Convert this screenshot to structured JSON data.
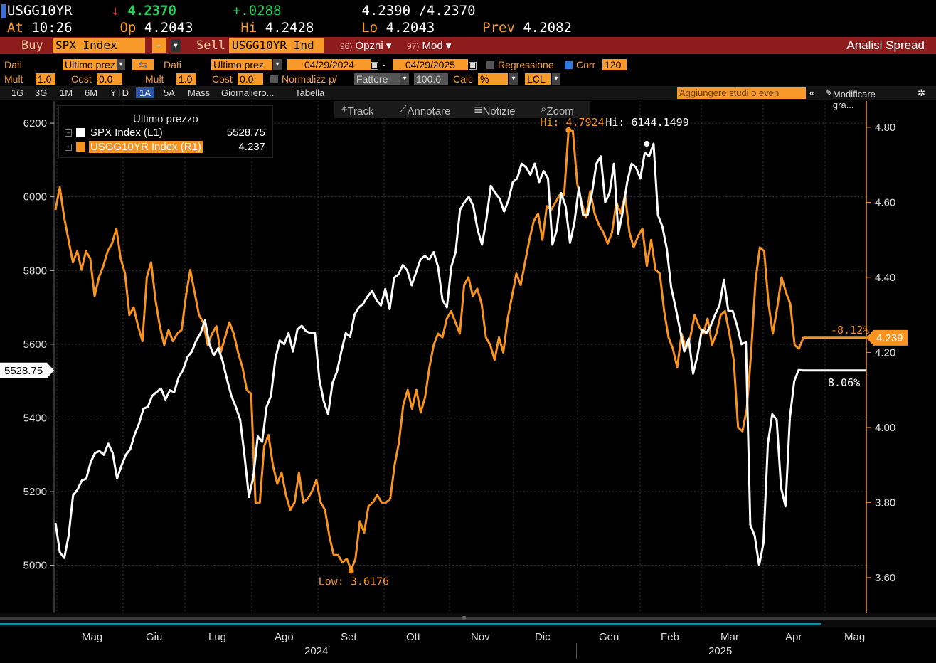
{
  "header": {
    "ticker": "USGG10YR",
    "last_arrow": "↓",
    "last": "4.2370",
    "change": "+.0288",
    "bid_ask": "4.2390 /4.2370",
    "at_label": "At",
    "time": "10:26",
    "open_label": "Op",
    "open": "4.2043",
    "hi_label": "Hi",
    "hi": "4.2428",
    "lo_label": "Lo",
    "lo": "4.2043",
    "prev_label": "Prev",
    "prev": "4.2082"
  },
  "actionbar": {
    "buy_label": "Buy",
    "buy_security": "SPX Index",
    "sell_label": "Sell",
    "sell_security": "USGG10YR Ind",
    "options_num": "96)",
    "options_label": "Opzni",
    "mod_num": "97)",
    "mod_label": "Mod",
    "title": "Analisi Spread",
    "dash": "-"
  },
  "settings": {
    "dati1_label": "Dati",
    "dati1_value": "Ultimo prez",
    "dati2_label": "Dati",
    "dati2_value": "Ultimo prez",
    "date_from": "04/29/2024",
    "date_sep": "-",
    "date_to": "04/29/2025",
    "regression_label": "Regressione",
    "corr_label": "Corr",
    "corr_value": "120",
    "mult1_label": "Mult",
    "mult1_value": "1.0",
    "cost1_label": "Cost",
    "cost1_value": "0.0",
    "mult2_label": "Mult",
    "mult2_value": "1.0",
    "cost2_label": "Cost",
    "cost2_value": "0.0",
    "normalize_label": "Normalizz p/",
    "normalize_value": "Fattore",
    "normalize_base": "100.0",
    "calc_label": "Calc",
    "calc_value": "%",
    "currency": "LCL"
  },
  "periods": {
    "items": [
      "1G",
      "3G",
      "1M",
      "6M",
      "YTD",
      "1A",
      "5A",
      "Mass",
      "Giornaliero...",
      "Tabella"
    ],
    "selected": "1A",
    "studies_placeholder": "Aggiungere studi o even",
    "modify_label": "Modificare gra..."
  },
  "toolbar": {
    "track": "Track",
    "annotate": "Annotare",
    "news": "Notizie",
    "zoom": "Zoom"
  },
  "legend": {
    "title": "Ultimo prezzo",
    "series1_name": "SPX Index  (L1)",
    "series1_value": "5528.75",
    "series2_name": "USGG10YR Index  (R1)",
    "series2_value": "4.237"
  },
  "colors": {
    "spx": "#ffffff",
    "yield": "#f7931e",
    "accent_bar": "#8e1c1c"
  },
  "chart_data": {
    "type": "line",
    "x_labels": [
      "Mag",
      "Giu",
      "Lug",
      "Ago",
      "Set",
      "Ott",
      "Nov",
      "Dic",
      "Gen",
      "Feb",
      "Mar",
      "Apr",
      "Mag"
    ],
    "year_labels": [
      "2024",
      "2025"
    ],
    "left_axis": {
      "ticks": [
        5000,
        5200,
        5400,
        5600,
        5800,
        6000,
        6200
      ],
      "ylim": [
        4870,
        6260
      ]
    },
    "right_axis": {
      "ticks": [
        "3.60",
        "3.80",
        "4.00",
        "4.20",
        "4.40",
        "4.60",
        "4.80"
      ],
      "ylim": [
        3.505,
        4.87
      ]
    },
    "series": [
      {
        "name": "SPX Index",
        "axis": "left",
        "values": [
          5115,
          5035,
          5020,
          5080,
          5190,
          5205,
          5230,
          5235,
          5280,
          5305,
          5310,
          5300,
          5330,
          5305,
          5235,
          5270,
          5300,
          5315,
          5355,
          5385,
          5425,
          5430,
          5460,
          5470,
          5480,
          5450,
          5475,
          5470,
          5510,
          5530,
          5565,
          5580,
          5610,
          5630,
          5665,
          5600,
          5570,
          5590,
          5555,
          5505,
          5460,
          5430,
          5395,
          5295,
          5185,
          5240,
          5350,
          5335,
          5430,
          5460,
          5560,
          5610,
          5600,
          5630,
          5580,
          5640,
          5650,
          5635,
          5630,
          5630,
          5505,
          5445,
          5410,
          5495,
          5525,
          5580,
          5630,
          5620,
          5680,
          5700,
          5710,
          5730,
          5745,
          5720,
          5705,
          5750,
          5695,
          5780,
          5790,
          5815,
          5800,
          5760,
          5795,
          5830,
          5840,
          5830,
          5850,
          5810,
          5720,
          5700,
          5810,
          5850,
          5965,
          5985,
          6000,
          5975,
          5910,
          5870,
          5940,
          6030,
          6010,
          5995,
          5960,
          5990,
          6040,
          6050,
          6090,
          6080,
          6060,
          6090,
          6040,
          6070,
          6050,
          5870,
          5910,
          6010,
          5975,
          5875,
          5930,
          6025,
          5950,
          5950,
          6010,
          6090,
          6110,
          5985,
          6010,
          6090,
          5900,
          5960,
          6040,
          6090,
          6080,
          6050,
          6120,
          6110,
          6144,
          5950,
          5920,
          5860,
          5755,
          5700,
          5640,
          5580,
          5615,
          5520,
          5570,
          5640,
          5630,
          5650,
          5680,
          5705,
          5775,
          5690,
          5690,
          5650,
          5600,
          5605,
          5110,
          5080,
          5000,
          5060,
          5330,
          5410,
          5395,
          5210,
          5160,
          5400,
          5500,
          5530,
          5528.75,
          5528.75,
          5528.75,
          5528.75,
          5528.75,
          5528.75
        ]
      },
      {
        "name": "USGG10YR Index",
        "axis": "right",
        "values": [
          4.58,
          4.64,
          4.56,
          4.5,
          4.44,
          4.47,
          4.42,
          4.47,
          4.45,
          4.35,
          4.4,
          4.43,
          4.47,
          4.49,
          4.53,
          4.45,
          4.41,
          4.3,
          4.32,
          4.27,
          4.23,
          4.4,
          4.44,
          4.34,
          4.27,
          4.22,
          4.26,
          4.23,
          4.25,
          4.26,
          4.35,
          4.42,
          4.36,
          4.3,
          4.28,
          4.22,
          4.25,
          4.27,
          4.2,
          4.24,
          4.28,
          4.25,
          4.2,
          4.16,
          4.1,
          4.09,
          3.8,
          3.8,
          3.95,
          3.98,
          3.9,
          3.85,
          3.88,
          3.82,
          3.78,
          3.8,
          3.88,
          3.8,
          3.81,
          3.83,
          3.86,
          3.8,
          3.78,
          3.71,
          3.66,
          3.66,
          3.64,
          3.65,
          3.62,
          3.65,
          3.75,
          3.72,
          3.79,
          3.8,
          3.82,
          3.8,
          3.8,
          3.81,
          3.9,
          3.96,
          4.06,
          4.1,
          4.05,
          4.1,
          4.04,
          4.08,
          4.16,
          4.22,
          4.25,
          4.24,
          4.29,
          4.31,
          4.28,
          4.25,
          4.38,
          4.4,
          4.35,
          4.37,
          4.33,
          4.24,
          4.22,
          4.18,
          4.24,
          4.2,
          4.29,
          4.35,
          4.41,
          4.38,
          4.44,
          4.5,
          4.55,
          4.57,
          4.5,
          4.59,
          4.58,
          4.6,
          4.62,
          4.62,
          4.79,
          4.79,
          4.65,
          4.6,
          4.56,
          4.63,
          4.57,
          4.54,
          4.52,
          4.49,
          4.52,
          4.6,
          4.57,
          4.62,
          4.52,
          4.48,
          4.51,
          4.53,
          4.43,
          4.5,
          4.42,
          4.41,
          4.31,
          4.24,
          4.21,
          4.16,
          4.25,
          4.21,
          4.24,
          4.3,
          4.27,
          4.25,
          4.29,
          4.22,
          4.25,
          4.3,
          4.31,
          4.25,
          4.18,
          4.0,
          3.99,
          4.05,
          4.2,
          4.39,
          4.48,
          4.47,
          4.33,
          4.25,
          4.32,
          4.4,
          4.36,
          4.33,
          4.22,
          4.21,
          4.239,
          4.239,
          4.239,
          4.239,
          4.239,
          4.239
        ]
      }
    ],
    "annotations": {
      "yield_high": "Hi: 4.7924",
      "spx_high": "Hi: 6144.1499",
      "yield_low": "Low: 3.6176",
      "yield_change": "-8.12%",
      "spx_change": "8.06%",
      "spx_last": "5528.75",
      "yield_last": "4.239"
    },
    "grid": true
  }
}
